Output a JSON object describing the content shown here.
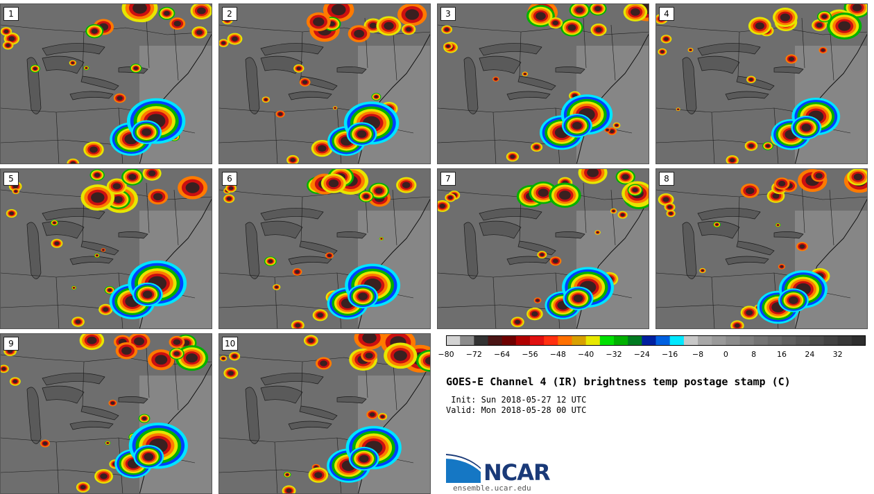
{
  "colors": {
    "background": "#6e6e6e",
    "cold_core": "#3a2020",
    "red": "#cc1010",
    "orange": "#ff7a00",
    "yellow": "#e6e600",
    "green": "#00b000",
    "blue": "#0040ff",
    "cyan": "#00e5ff"
  },
  "panels": [
    {
      "label": "1"
    },
    {
      "label": "2"
    },
    {
      "label": "3"
    },
    {
      "label": "4"
    },
    {
      "label": "5"
    },
    {
      "label": "6"
    },
    {
      "label": "7"
    },
    {
      "label": "8"
    },
    {
      "label": "9"
    },
    {
      "label": "10"
    }
  ],
  "colorbar": {
    "tick_labels": [
      "−80",
      "−72",
      "−64",
      "−56",
      "−48",
      "−40",
      "−32",
      "−24",
      "−16",
      "−8",
      "0",
      "8",
      "16",
      "24",
      "32"
    ],
    "colors": [
      "#d3d3d3",
      "#8c8c8c",
      "#333333",
      "#4a1515",
      "#6e0000",
      "#b00000",
      "#e01010",
      "#ff3010",
      "#ff7000",
      "#d8a000",
      "#e8e800",
      "#00e000",
      "#00b000",
      "#007a20",
      "#0020a0",
      "#0060e0",
      "#00e8ff",
      "#c8c8c8",
      "#a8a8a8",
      "#9a9a9a",
      "#8c8c8c",
      "#808080",
      "#747474",
      "#6a6a6a",
      "#606060",
      "#565656",
      "#4c4c4c",
      "#424242",
      "#383838",
      "#2e2e2e"
    ]
  },
  "title": "GOES-E Channel 4 (IR) brightness temp postage stamp (C)",
  "init_line": " Init: Sun 2018-05-27 12 UTC",
  "valid_line": "Valid: Mon 2018-05-28 00 UTC",
  "logo": {
    "name": "NCAR",
    "url": "ensemble.ucar.edu"
  }
}
